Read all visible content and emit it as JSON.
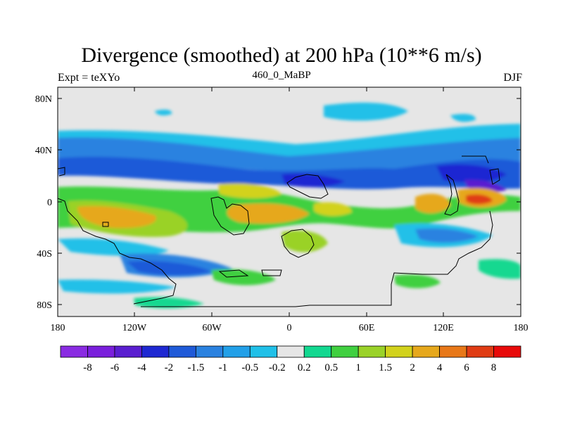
{
  "title": "Divergence (smoothed) at 200 hPa (10**6 m/s)",
  "left_label": "Expt = teXYo",
  "center_label": "460_0_MaBP",
  "right_label": "DJF",
  "map": {
    "y_ticks": [
      "80N",
      "40N",
      "0",
      "40S",
      "80S"
    ],
    "x_ticks": [
      "180",
      "120W",
      "60W",
      "0",
      "60E",
      "120E",
      "180"
    ]
  },
  "colorbar": {
    "labels": [
      "-8",
      "-6",
      "-4",
      "-2",
      "-1.5",
      "-1",
      "-0.5",
      "-0.2",
      "0.2",
      "0.5",
      "1",
      "1.5",
      "2",
      "4",
      "6",
      "8"
    ],
    "colors": [
      "#8a2be2",
      "#7a1fdc",
      "#5a1ed0",
      "#1e28d2",
      "#1f5ad8",
      "#2a82e0",
      "#22a0e8",
      "#20c0e8",
      "#e6e6e6",
      "#12d890",
      "#40d040",
      "#9ad228",
      "#d2d21c",
      "#e6a81c",
      "#e87818",
      "#e03c14",
      "#e80a0a"
    ]
  }
}
